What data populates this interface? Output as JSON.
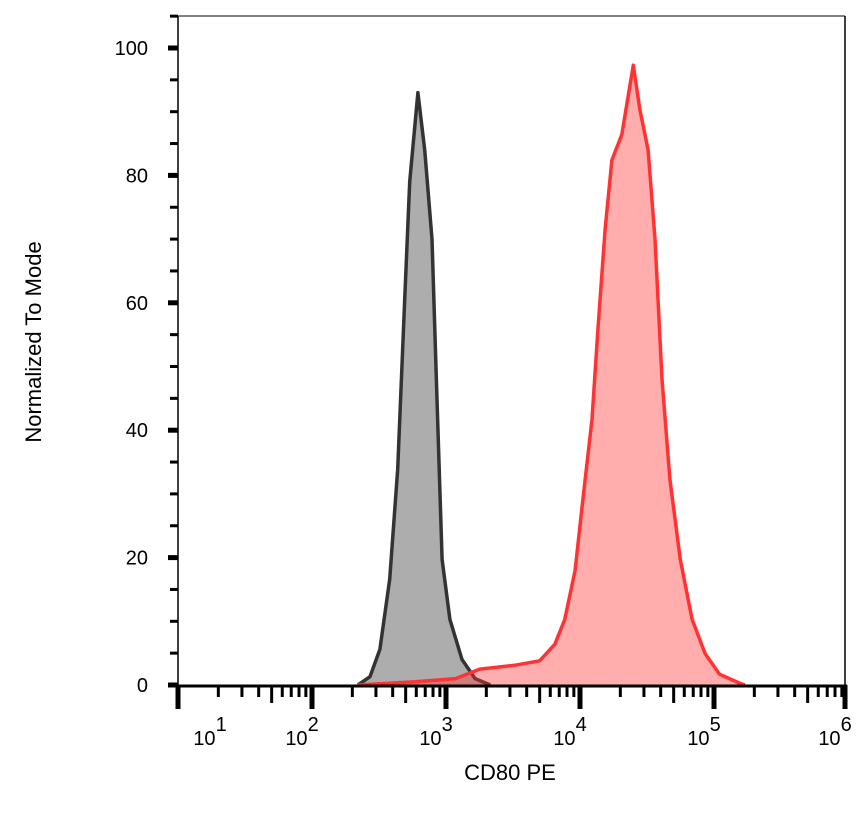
{
  "chart_data": {
    "type": "area",
    "title": "",
    "xlabel": "CD80 PE",
    "ylabel": "Normalized To Mode",
    "x_scale": "log",
    "xlim": [
      10,
      950000
    ],
    "ylim": [
      0,
      105
    ],
    "x_ticks": [
      {
        "base": "10",
        "exp": "1",
        "value": 10
      },
      {
        "base": "10",
        "exp": "2",
        "value": 100
      },
      {
        "base": "10",
        "exp": "3",
        "value": 1000
      },
      {
        "base": "10",
        "exp": "4",
        "value": 10000
      },
      {
        "base": "10",
        "exp": "5",
        "value": 100000
      },
      {
        "base": "10",
        "exp": "6",
        "value": 1000000
      }
    ],
    "y_ticks": [
      "0",
      "20",
      "40",
      "60",
      "80",
      "100"
    ],
    "grid": false,
    "colors": {
      "control_fill": "#adadad",
      "control_line": "#333333",
      "stained_fill": "#ffadad",
      "stained_line": "#ff3333"
    },
    "series": [
      {
        "points": [
          [
            220,
            0
          ],
          [
            271,
            1.3
          ],
          [
            321,
            5.6
          ],
          [
            380,
            16.6
          ],
          [
            436,
            33.9
          ],
          [
            492,
            60.5
          ],
          [
            536,
            79
          ],
          [
            617,
            93
          ],
          [
            693,
            84
          ],
          [
            786,
            70
          ],
          [
            857,
            44.8
          ],
          [
            935,
            19.7
          ],
          [
            1070,
            10.3
          ],
          [
            1317,
            4
          ],
          [
            1650,
            1
          ],
          [
            2140,
            0
          ]
        ]
      },
      {
        "points": [
          [
            220,
            0
          ],
          [
            590,
            0.5
          ],
          [
            1180,
            1
          ],
          [
            1790,
            2.5
          ],
          [
            3250,
            3.1
          ],
          [
            5000,
            3.8
          ],
          [
            6500,
            6.4
          ],
          [
            7700,
            10.3
          ],
          [
            9200,
            18
          ],
          [
            10500,
            29
          ],
          [
            12300,
            41.7
          ],
          [
            13600,
            55.8
          ],
          [
            15400,
            71.5
          ],
          [
            17300,
            82.4
          ],
          [
            20500,
            86.4
          ],
          [
            25000,
            97.3
          ],
          [
            28000,
            90.3
          ],
          [
            32200,
            84
          ],
          [
            36300,
            70
          ],
          [
            40900,
            48
          ],
          [
            46900,
            32.3
          ],
          [
            56000,
            19.7
          ],
          [
            68600,
            10.3
          ],
          [
            86000,
            4.9
          ],
          [
            110000,
            1.7
          ],
          [
            155000,
            0.3
          ],
          [
            170000,
            0
          ]
        ]
      }
    ]
  }
}
